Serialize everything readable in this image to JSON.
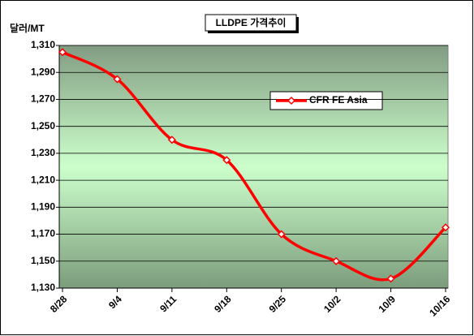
{
  "chart_data": {
    "type": "line",
    "title": "LLDPE 가격추이",
    "y_label": "달러/MT",
    "categories": [
      "8/28",
      "9/4",
      "9/11",
      "9/18",
      "9/25",
      "10/2",
      "10/9",
      "10/16"
    ],
    "series": [
      {
        "name": "CFR FE Asia",
        "color": "#ff0000",
        "values": [
          1305,
          1285,
          1240,
          1225,
          1170,
          1150,
          1137,
          1175
        ]
      }
    ],
    "ylim": [
      1130,
      1310
    ],
    "yticks": [
      {
        "value": 1130,
        "label": "1,130"
      },
      {
        "value": 1150,
        "label": "1,150"
      },
      {
        "value": 1170,
        "label": "1,170"
      },
      {
        "value": 1190,
        "label": "1,190"
      },
      {
        "value": 1210,
        "label": "1,210"
      },
      {
        "value": 1230,
        "label": "1,230"
      },
      {
        "value": 1250,
        "label": "1,250"
      },
      {
        "value": 1270,
        "label": "1,270"
      },
      {
        "value": 1290,
        "label": "1,290"
      },
      {
        "value": 1310,
        "label": "1,310"
      }
    ],
    "grid": true
  }
}
